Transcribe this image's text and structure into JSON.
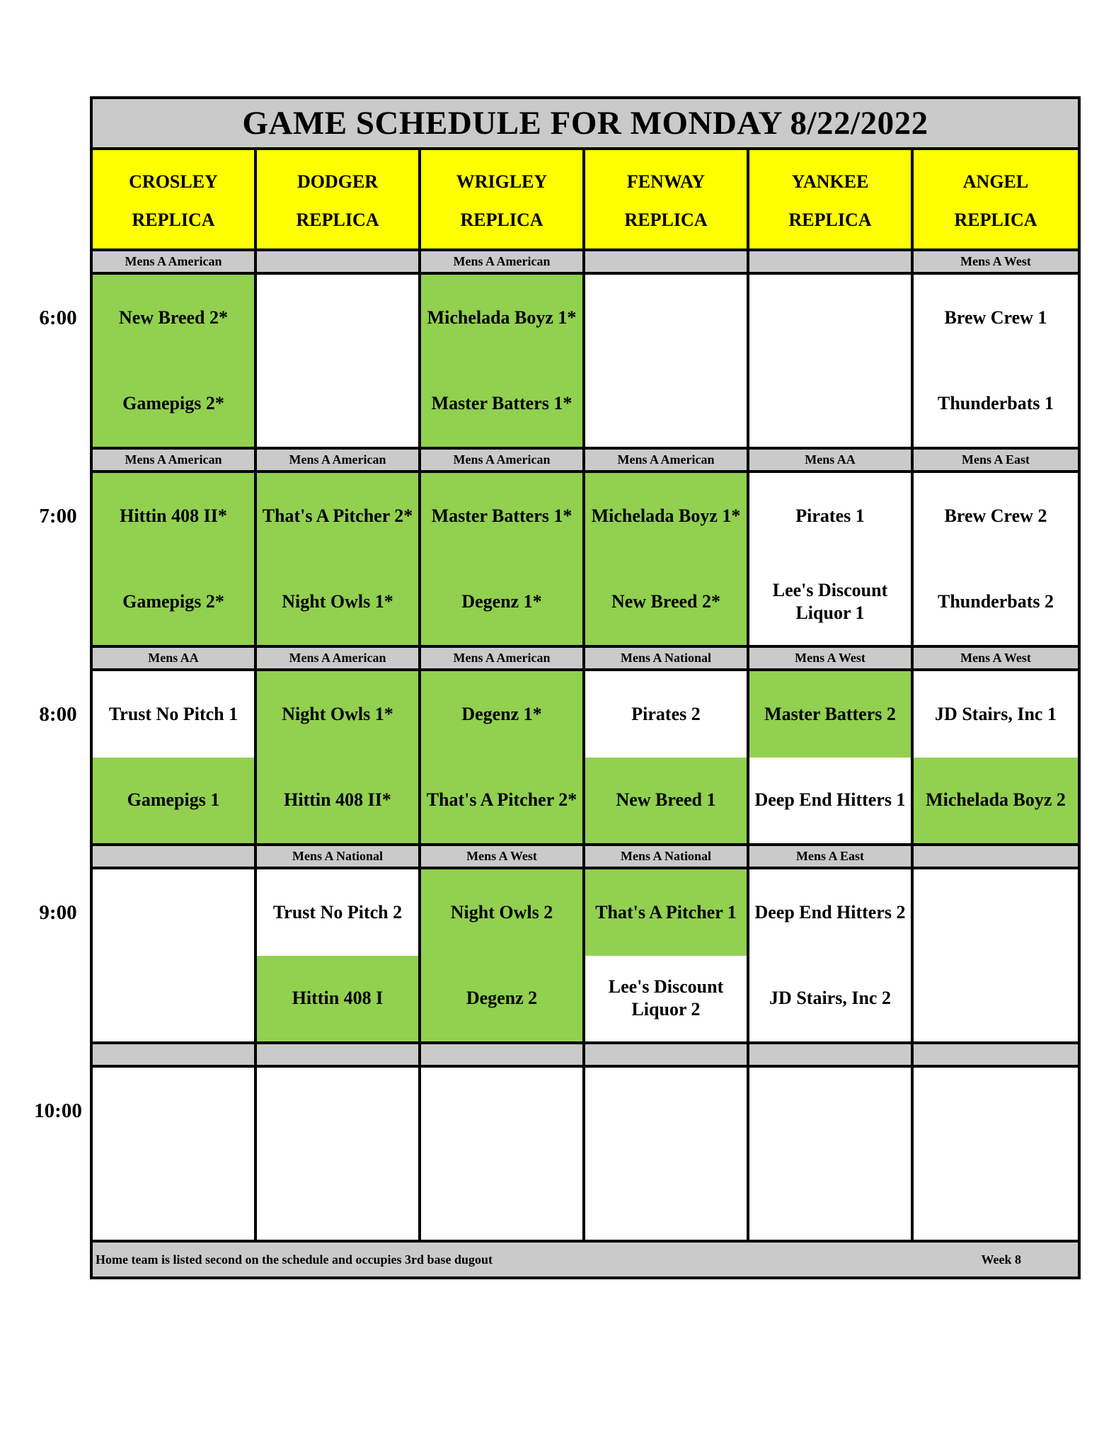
{
  "title": "GAME SCHEDULE FOR MONDAY 8/22/2022",
  "fields": [
    {
      "line1": "CROSLEY",
      "line2": "REPLICA"
    },
    {
      "line1": "DODGER",
      "line2": "REPLICA"
    },
    {
      "line1": "WRIGLEY",
      "line2": "REPLICA"
    },
    {
      "line1": "FENWAY",
      "line2": "REPLICA"
    },
    {
      "line1": "YANKEE",
      "line2": "REPLICA"
    },
    {
      "line1": "ANGEL",
      "line2": "REPLICA"
    }
  ],
  "colors": {
    "header": "#ffff00",
    "green": "#92d050",
    "gray": "#cacaca"
  },
  "periods": [
    {
      "time": "6:00",
      "games": [
        {
          "division": "Mens A American",
          "top": "New Breed 2*",
          "bottom": "Gamepigs 2*",
          "top_color": "green",
          "bottom_color": "green"
        },
        {
          "division": "",
          "top": "",
          "bottom": "",
          "top_color": "white",
          "bottom_color": "white"
        },
        {
          "division": "Mens A American",
          "top": "Michelada Boyz 1*",
          "bottom": "Master Batters 1*",
          "top_color": "green",
          "bottom_color": "green"
        },
        {
          "division": "",
          "top": "",
          "bottom": "",
          "top_color": "white",
          "bottom_color": "white"
        },
        {
          "division": "",
          "top": "",
          "bottom": "",
          "top_color": "white",
          "bottom_color": "white"
        },
        {
          "division": "Mens A West",
          "top": "Brew Crew 1",
          "bottom": "Thunderbats 1",
          "top_color": "white",
          "bottom_color": "white"
        }
      ]
    },
    {
      "time": "7:00",
      "games": [
        {
          "division": "Mens A American",
          "top": "Hittin 408 II*",
          "bottom": "Gamepigs 2*",
          "top_color": "green",
          "bottom_color": "green"
        },
        {
          "division": "Mens A American",
          "top": "That's A Pitcher 2*",
          "bottom": "Night Owls 1*",
          "top_color": "green",
          "bottom_color": "green"
        },
        {
          "division": "Mens A American",
          "top": "Master Batters 1*",
          "bottom": "Degenz 1*",
          "top_color": "green",
          "bottom_color": "green"
        },
        {
          "division": "Mens A American",
          "top": "Michelada Boyz 1*",
          "bottom": "New Breed 2*",
          "top_color": "green",
          "bottom_color": "green"
        },
        {
          "division": "Mens AA",
          "top": "Pirates 1",
          "bottom": "Lee's Discount Liquor 1",
          "top_color": "white",
          "bottom_color": "white"
        },
        {
          "division": "Mens A East",
          "top": "Brew Crew 2",
          "bottom": "Thunderbats 2",
          "top_color": "white",
          "bottom_color": "white"
        }
      ]
    },
    {
      "time": "8:00",
      "games": [
        {
          "division": "Mens AA",
          "top": "Trust No Pitch 1",
          "bottom": "Gamepigs 1",
          "top_color": "white",
          "bottom_color": "green"
        },
        {
          "division": "Mens A American",
          "top": "Night Owls 1*",
          "bottom": "Hittin 408 II*",
          "top_color": "green",
          "bottom_color": "green"
        },
        {
          "division": "Mens A American",
          "top": "Degenz 1*",
          "bottom": "That's A Pitcher 2*",
          "top_color": "green",
          "bottom_color": "green"
        },
        {
          "division": "Mens A National",
          "top": "Pirates 2",
          "bottom": "New Breed 1",
          "top_color": "white",
          "bottom_color": "green"
        },
        {
          "division": "Mens A West",
          "top": "Master Batters 2",
          "bottom": "Deep End Hitters 1",
          "top_color": "green",
          "bottom_color": "white"
        },
        {
          "division": "Mens A West",
          "top": "JD Stairs, Inc 1",
          "bottom": "Michelada Boyz 2",
          "top_color": "white",
          "bottom_color": "green"
        }
      ]
    },
    {
      "time": "9:00",
      "games": [
        {
          "division": "",
          "top": "",
          "bottom": "",
          "top_color": "white",
          "bottom_color": "white"
        },
        {
          "division": "Mens A National",
          "top": "Trust No Pitch 2",
          "bottom": "Hittin 408 I",
          "top_color": "white",
          "bottom_color": "green"
        },
        {
          "division": "Mens A West",
          "top": "Night Owls 2",
          "bottom": "Degenz 2",
          "top_color": "green",
          "bottom_color": "green"
        },
        {
          "division": "Mens A National",
          "top": "That's A Pitcher 1",
          "bottom": "Lee's Discount Liquor 2",
          "top_color": "green",
          "bottom_color": "white"
        },
        {
          "division": "Mens A East",
          "top": "Deep End Hitters 2",
          "bottom": "JD Stairs, Inc 2",
          "top_color": "white",
          "bottom_color": "white"
        },
        {
          "division": "",
          "top": "",
          "bottom": "",
          "top_color": "white",
          "bottom_color": "white"
        }
      ]
    },
    {
      "time": "10:00",
      "games": [
        {
          "division": "",
          "top": "",
          "bottom": "",
          "top_color": "white",
          "bottom_color": "white"
        },
        {
          "division": "",
          "top": "",
          "bottom": "",
          "top_color": "white",
          "bottom_color": "white"
        },
        {
          "division": "",
          "top": "",
          "bottom": "",
          "top_color": "white",
          "bottom_color": "white"
        },
        {
          "division": "",
          "top": "",
          "bottom": "",
          "top_color": "white",
          "bottom_color": "white"
        },
        {
          "division": "",
          "top": "",
          "bottom": "",
          "top_color": "white",
          "bottom_color": "white"
        },
        {
          "division": "",
          "top": "",
          "bottom": "",
          "top_color": "white",
          "bottom_color": "white"
        }
      ]
    }
  ],
  "footer": {
    "note": "Home team is listed second on the schedule and occupies 3rd base dugout",
    "week": "Week 8"
  }
}
